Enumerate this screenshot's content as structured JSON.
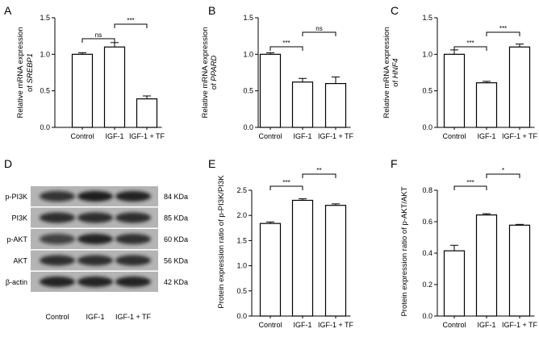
{
  "chart_data": [
    {
      "panel": "A",
      "type": "bar",
      "categories": [
        "Control",
        "IGF-1",
        "IGF-1 + TF"
      ],
      "values": [
        1.0,
        1.1,
        0.39
      ],
      "errors": [
        0.02,
        0.06,
        0.04
      ],
      "ylabel_prefix": "Relative mRNA expression",
      "ylabel_gene": "SREBP1",
      "ylim": [
        0,
        1.5
      ],
      "yticks": [
        "0.0",
        "0.5",
        "1.0",
        "1.5"
      ],
      "comparisons": [
        {
          "from": 0,
          "to": 1,
          "label": "ns"
        },
        {
          "from": 1,
          "to": 2,
          "label": "***"
        }
      ]
    },
    {
      "panel": "B",
      "type": "bar",
      "categories": [
        "Control",
        "IGF-1",
        "IGF-1 + TF"
      ],
      "values": [
        1.0,
        0.62,
        0.6
      ],
      "errors": [
        0.02,
        0.05,
        0.09
      ],
      "ylabel_prefix": "Relative mRNA expression",
      "ylabel_gene": "PPARD",
      "ylim": [
        0,
        1.5
      ],
      "yticks": [
        "0.0",
        "0.5",
        "1.0",
        "1.5"
      ],
      "comparisons": [
        {
          "from": 0,
          "to": 1,
          "label": "***"
        },
        {
          "from": 1,
          "to": 2,
          "label": "ns"
        }
      ]
    },
    {
      "panel": "C",
      "type": "bar",
      "categories": [
        "Control",
        "IGF-1",
        "IGF-1 + TF"
      ],
      "values": [
        1.0,
        0.61,
        1.1
      ],
      "errors": [
        0.06,
        0.02,
        0.04
      ],
      "ylabel_prefix": "Relative mRNA expression",
      "ylabel_gene": "HNF4",
      "ylim": [
        0,
        1.5
      ],
      "yticks": [
        "0.0",
        "0.5",
        "1.0",
        "1.5"
      ],
      "comparisons": [
        {
          "from": 0,
          "to": 1,
          "label": "***"
        },
        {
          "from": 1,
          "to": 2,
          "label": "***"
        }
      ]
    },
    {
      "panel": "E",
      "type": "bar",
      "categories": [
        "Control",
        "IGF-1",
        "IGF-1 + TF"
      ],
      "values": [
        1.84,
        2.3,
        2.2
      ],
      "errors": [
        0.03,
        0.03,
        0.03
      ],
      "ylabel": "Protein expression ratio of p-PI3K/PI3K",
      "ylim": [
        0,
        2.5
      ],
      "yticks": [
        "0.0",
        "0.5",
        "1.0",
        "1.5",
        "2.0",
        "2.5"
      ],
      "comparisons": [
        {
          "from": 0,
          "to": 1,
          "label": "***"
        },
        {
          "from": 1,
          "to": 2,
          "label": "**"
        }
      ]
    },
    {
      "panel": "F",
      "type": "bar",
      "categories": [
        "Control",
        "IGF-1",
        "IGF-1 + TF"
      ],
      "values": [
        0.415,
        0.643,
        0.578
      ],
      "errors": [
        0.035,
        0.008,
        0.005
      ],
      "ylabel": "Protein expression ratio of p-AKT/AKT",
      "ylim": [
        0,
        0.8
      ],
      "yticks": [
        "0.0",
        "0.2",
        "0.4",
        "0.6",
        "0.8"
      ],
      "comparisons": [
        {
          "from": 0,
          "to": 1,
          "label": "***"
        },
        {
          "from": 1,
          "to": 2,
          "label": "*"
        }
      ]
    }
  ],
  "western_blot": {
    "panel": "D",
    "bands": [
      {
        "label": "p-PI3K",
        "size": "84 KDa"
      },
      {
        "label": "PI3K",
        "size": "85 KDa"
      },
      {
        "label": "p-AKT",
        "size": "60 KDa"
      },
      {
        "label": "AKT",
        "size": "56 KDa"
      },
      {
        "label": "β-actin",
        "size": "42 KDa"
      }
    ],
    "lanes": [
      "Control",
      "IGF-1",
      "IGF-1 + TF"
    ]
  }
}
